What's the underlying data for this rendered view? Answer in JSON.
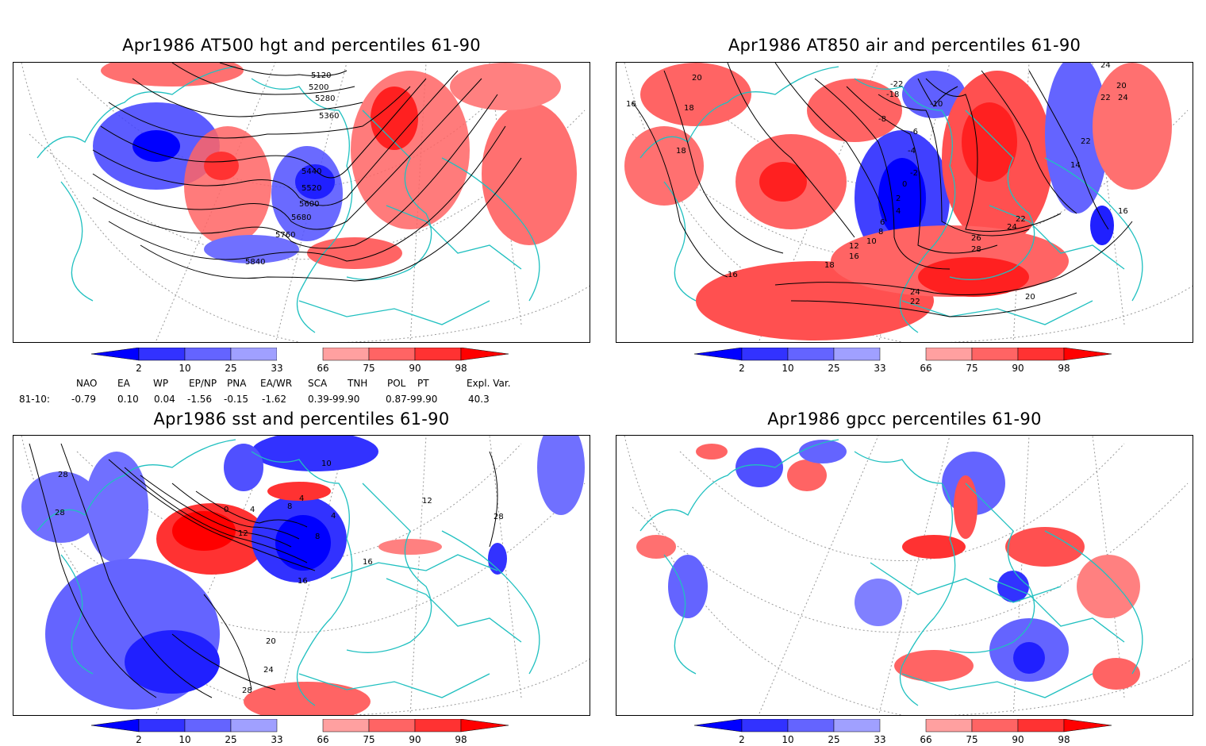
{
  "panels": [
    {
      "title": "Apr1986 AT500 hgt and percentiles 61-90",
      "contour_labels": [
        "5120",
        "5200",
        "5280",
        "5360",
        "5440",
        "5520",
        "5600",
        "5680",
        "5760",
        "5840"
      ]
    },
    {
      "title": "Apr1986 AT850 air and percentiles 61-90",
      "contour_labels": [
        "20",
        "18",
        "16",
        "18",
        "-22",
        "-18",
        "-10",
        "-8",
        "-6",
        "-4",
        "-2",
        "0",
        "2",
        "4",
        "6",
        "8",
        "10",
        "12",
        "16",
        "18",
        "20",
        "24",
        "22",
        "22",
        "24",
        "26",
        "28",
        "24",
        "22",
        "20",
        "16",
        "24",
        "22",
        "14",
        "16"
      ]
    },
    {
      "title": "Apr1986 sst and percentiles 61-90",
      "contour_labels": [
        "28",
        "28",
        "0",
        "4",
        "8",
        "12",
        "16",
        "20",
        "24",
        "28",
        "10",
        "4",
        "8",
        "4",
        "16",
        "12",
        "28"
      ]
    },
    {
      "title": "Apr1986 gpcc percentiles 61-90"
    }
  ],
  "colorbar": {
    "labels": [
      "2",
      "10",
      "25",
      "33",
      "66",
      "75",
      "90",
      "98"
    ],
    "colors": [
      "#0000ff",
      "#3232ff",
      "#6464ff",
      "#a0a0ff",
      "#ffffff",
      "#ffa0a0",
      "#ff6464",
      "#ff3232",
      "#ff0000"
    ]
  },
  "indices": {
    "headers": [
      "NAO",
      "EA",
      "WP",
      "EP/NP",
      "PNA",
      "EA/WR",
      "SCA",
      "TNH",
      "POL",
      "PT",
      "Expl. Var."
    ],
    "row_label": "81-10:",
    "values": [
      "-0.79",
      "0.10",
      "0.04",
      "-1.56",
      "-0.15",
      "-1.62",
      "0.39-99.90",
      "0.87-99.90",
      "40.3"
    ]
  },
  "colors": {
    "coast": "#20c0c0",
    "grid": "#999999",
    "contour": "#000000"
  }
}
